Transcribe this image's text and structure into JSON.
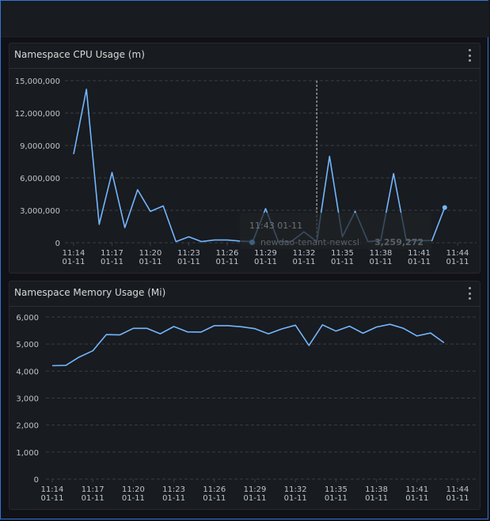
{
  "panels": {
    "cpu": {
      "title": "Namespace CPU Usage (m)"
    },
    "memory": {
      "title": "Namespace Memory Usage (Mi)"
    }
  },
  "tooltip": {
    "time": "11:43 01-11",
    "series": "newdao-tenant-newcsl",
    "value": "3,259,272"
  },
  "colors": {
    "series": "#73b6ff",
    "background": "#111217",
    "panel": "#181b1f",
    "frame_accent": "#3274d9"
  },
  "chart_data": [
    {
      "type": "line",
      "title": "Namespace CPU Usage (m)",
      "ylim": [
        0,
        15000000
      ],
      "yticks": [
        "15,000,000",
        "12,000,000",
        "9,000,000",
        "6,000,000",
        "3,000,000",
        "0"
      ],
      "ytick_values": [
        15000000,
        12000000,
        9000000,
        6000000,
        3000000,
        0
      ],
      "xticks": [
        {
          "t": "11:14",
          "d": "01-11"
        },
        {
          "t": "11:17",
          "d": "01-11"
        },
        {
          "t": "11:20",
          "d": "01-11"
        },
        {
          "t": "11:23",
          "d": "01-11"
        },
        {
          "t": "11:26",
          "d": "01-11"
        },
        {
          "t": "11:29",
          "d": "01-11"
        },
        {
          "t": "11:32",
          "d": "01-11"
        },
        {
          "t": "11:35",
          "d": "01-11"
        },
        {
          "t": "11:38",
          "d": "01-11"
        },
        {
          "t": "11:41",
          "d": "01-11"
        },
        {
          "t": "11:44",
          "d": "01-11"
        }
      ],
      "xrange": [
        "11:14",
        "11:44"
      ],
      "grid": true,
      "series": [
        {
          "name": "newdao-tenant-newcsl",
          "points": [
            [
              "11:14",
              8200000
            ],
            [
              "11:15",
              14200000
            ],
            [
              "11:16",
              1700000
            ],
            [
              "11:17",
              6500000
            ],
            [
              "11:18",
              1400000
            ],
            [
              "11:19",
              4900000
            ],
            [
              "11:20",
              2900000
            ],
            [
              "11:21",
              3400000
            ],
            [
              "11:22",
              100000
            ],
            [
              "11:23",
              550000
            ],
            [
              "11:24",
              100000
            ],
            [
              "11:25",
              250000
            ],
            [
              "11:26",
              250000
            ],
            [
              "11:27",
              150000
            ],
            [
              "11:28",
              100000
            ],
            [
              "11:29",
              3150000
            ],
            [
              "11:30",
              100000
            ],
            [
              "11:31",
              100000
            ],
            [
              "11:32",
              1000000
            ],
            [
              "11:33",
              100000
            ],
            [
              "11:34",
              8000000
            ],
            [
              "11:35",
              550000
            ],
            [
              "11:36",
              2900000
            ],
            [
              "11:37",
              100000
            ],
            [
              "11:38",
              200000
            ],
            [
              "11:39",
              6400000
            ],
            [
              "11:40",
              200000
            ],
            [
              "11:41",
              200000
            ],
            [
              "11:42",
              200000
            ],
            [
              "11:43",
              3259272
            ]
          ]
        }
      ]
    },
    {
      "type": "line",
      "title": "Namespace Memory Usage (Mi)",
      "ylim": [
        0,
        6000
      ],
      "yticks": [
        "6,000",
        "5,000",
        "4,000",
        "3,000",
        "2,000",
        "1,000",
        "0"
      ],
      "ytick_values": [
        6000,
        5000,
        4000,
        3000,
        2000,
        1000,
        0
      ],
      "xticks": [
        {
          "t": "11:14",
          "d": "01-11"
        },
        {
          "t": "11:17",
          "d": "01-11"
        },
        {
          "t": "11:20",
          "d": "01-11"
        },
        {
          "t": "11:23",
          "d": "01-11"
        },
        {
          "t": "11:26",
          "d": "01-11"
        },
        {
          "t": "11:29",
          "d": "01-11"
        },
        {
          "t": "11:32",
          "d": "01-11"
        },
        {
          "t": "11:35",
          "d": "01-11"
        },
        {
          "t": "11:38",
          "d": "01-11"
        },
        {
          "t": "11:41",
          "d": "01-11"
        },
        {
          "t": "11:44",
          "d": "01-11"
        }
      ],
      "xrange": [
        "11:14",
        "11:44"
      ],
      "grid": true,
      "series": [
        {
          "name": "newdao-tenant-newcsl",
          "points": [
            [
              "11:14",
              4200
            ],
            [
              "11:15",
              4210
            ],
            [
              "11:16",
              4520
            ],
            [
              "11:17",
              4750
            ],
            [
              "11:18",
              5350
            ],
            [
              "11:19",
              5340
            ],
            [
              "11:20",
              5580
            ],
            [
              "11:21",
              5580
            ],
            [
              "11:22",
              5380
            ],
            [
              "11:23",
              5650
            ],
            [
              "11:24",
              5450
            ],
            [
              "11:25",
              5440
            ],
            [
              "11:26",
              5680
            ],
            [
              "11:27",
              5680
            ],
            [
              "11:28",
              5640
            ],
            [
              "11:29",
              5570
            ],
            [
              "11:30",
              5380
            ],
            [
              "11:31",
              5560
            ],
            [
              "11:32",
              5700
            ],
            [
              "11:33",
              4950
            ],
            [
              "11:34",
              5710
            ],
            [
              "11:35",
              5480
            ],
            [
              "11:36",
              5660
            ],
            [
              "11:37",
              5400
            ],
            [
              "11:38",
              5630
            ],
            [
              "11:39",
              5730
            ],
            [
              "11:40",
              5580
            ],
            [
              "11:41",
              5300
            ],
            [
              "11:42",
              5410
            ],
            [
              "11:43",
              5050
            ]
          ]
        }
      ]
    }
  ]
}
